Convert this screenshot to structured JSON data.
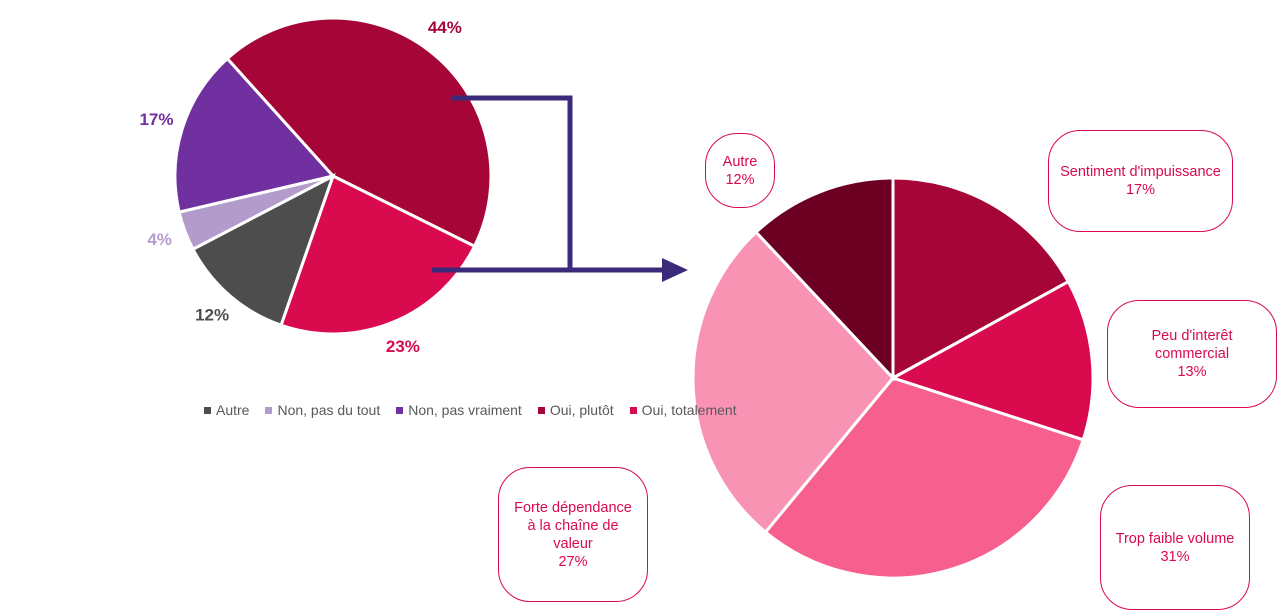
{
  "chart_data": [
    {
      "type": "pie",
      "categories": [
        "Autre",
        "Non, pas du tout",
        "Non, pas vraiment",
        "Oui, plutôt",
        "Oui, totalement"
      ],
      "values": [
        12,
        4,
        17,
        44,
        23
      ],
      "value_labels": [
        "12%",
        "4%",
        "17%",
        "44%",
        "23%"
      ],
      "colors": [
        "#4d4d4d",
        "#b39ccc",
        "#7030a0",
        "#a50537",
        "#d90a4e"
      ],
      "legend": "bottom"
    },
    {
      "type": "pie",
      "categories": [
        "Sentiment d'impuissance",
        "Peu d'interêt commercial",
        "Trop faible volume",
        "Forte dépendance à la chaîne de valeur",
        "Autre"
      ],
      "values": [
        17,
        13,
        31,
        27,
        12
      ],
      "value_labels": [
        "17%",
        "13%",
        "31%",
        "27%",
        "12%"
      ],
      "colors": [
        "#a50537",
        "#d90a4e",
        "#f75f8f",
        "#f993b4",
        "#6b0022"
      ]
    }
  ]
}
